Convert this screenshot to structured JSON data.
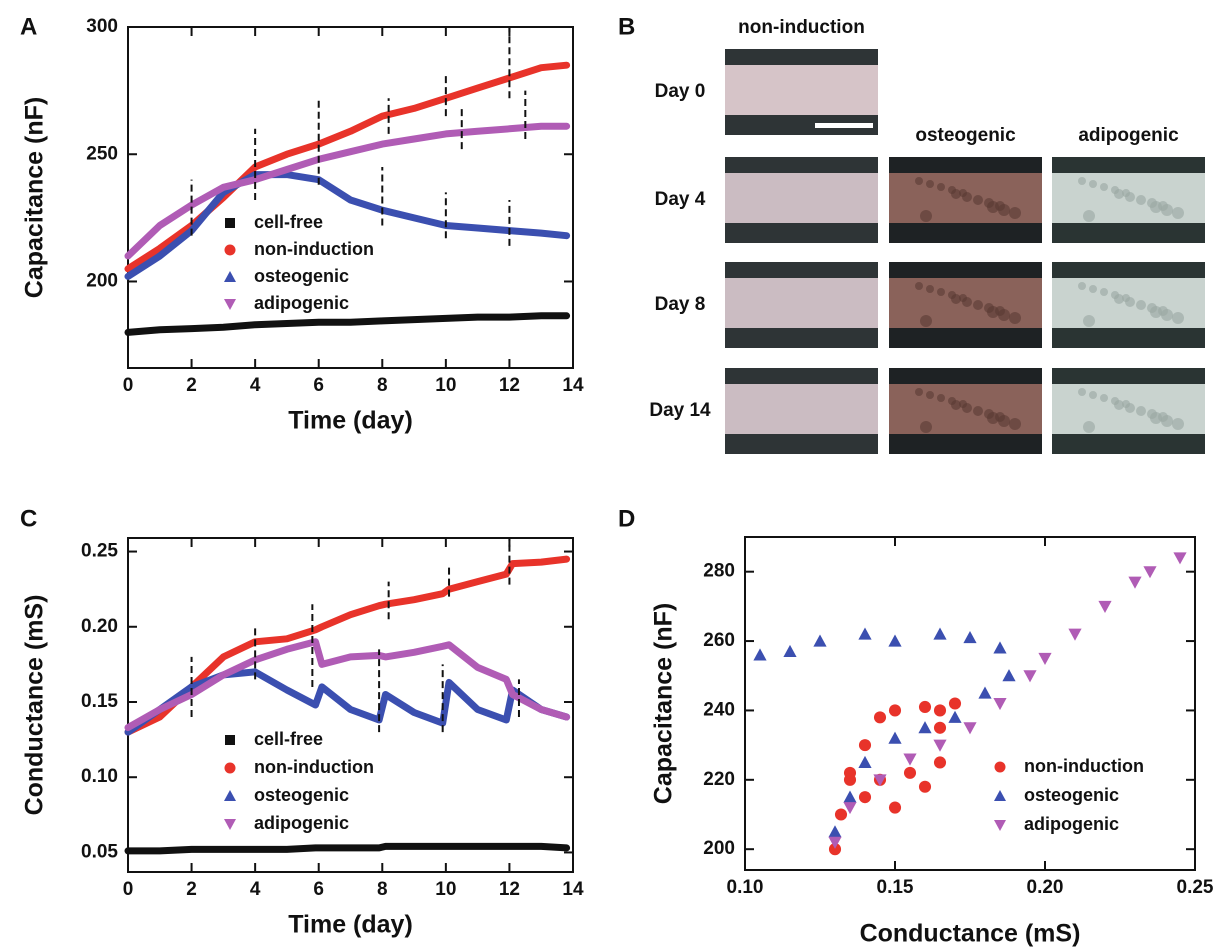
{
  "chart_data": [
    {
      "type": "line",
      "panel": "A",
      "xlabel": "Time (day)",
      "ylabel": "Capacitance (nF)",
      "x": [
        0,
        1,
        2,
        3,
        4,
        5,
        6,
        7,
        8,
        9,
        10,
        11,
        12,
        13,
        13.8
      ],
      "series": [
        {
          "name": "cell-free",
          "color": "#111111",
          "marker": "square",
          "values": [
            180,
            181,
            181.5,
            182,
            183,
            183.5,
            184,
            184,
            184.5,
            185,
            185.5,
            186,
            186,
            186.5,
            186.5
          ]
        },
        {
          "name": "non-induction",
          "color": "#e8332a",
          "marker": "circle",
          "values": [
            205,
            213,
            222,
            233,
            245,
            250,
            254,
            259,
            265,
            268,
            272,
            276,
            280,
            284,
            285
          ]
        },
        {
          "name": "osteogenic",
          "color": "#3b4fb0",
          "marker": "triangle-up",
          "values": [
            202,
            210,
            220,
            235,
            242,
            242,
            240,
            232,
            228,
            225,
            222,
            221,
            220,
            219,
            218
          ]
        },
        {
          "name": "adipogenic",
          "color": "#b05cb5",
          "marker": "triangle-down",
          "values": [
            210,
            222,
            230,
            237,
            240,
            244,
            248,
            251,
            254,
            256,
            258,
            259,
            260,
            261,
            261
          ]
        }
      ],
      "vlines": [
        [
          2,
          218,
          240
        ],
        [
          4,
          232,
          260
        ],
        [
          6,
          238,
          272
        ],
        [
          8,
          222,
          245
        ],
        [
          8.2,
          258,
          272
        ],
        [
          10,
          217,
          235
        ],
        [
          10,
          265,
          282
        ],
        [
          10.5,
          252,
          268
        ],
        [
          12,
          214,
          232
        ],
        [
          12,
          272,
          300
        ],
        [
          12.5,
          256,
          275
        ]
      ],
      "xlim": [
        0,
        14
      ],
      "ylim": [
        166,
        300
      ],
      "xticks": [
        0,
        2,
        4,
        6,
        8,
        10,
        12,
        14
      ],
      "yticks": [
        200,
        250,
        300
      ]
    },
    {
      "type": "line",
      "panel": "C",
      "xlabel": "Time (day)",
      "ylabel": "Conductance (mS)",
      "x": [
        0,
        1,
        2,
        3,
        4,
        5,
        5.9,
        6.1,
        7,
        7.9,
        8.1,
        9,
        9.9,
        10.1,
        11,
        11.9,
        12.1,
        13,
        13.8
      ],
      "series": [
        {
          "name": "cell-free",
          "color": "#111111",
          "marker": "square",
          "values": [
            0.051,
            0.051,
            0.052,
            0.052,
            0.052,
            0.052,
            0.053,
            0.053,
            0.053,
            0.053,
            0.054,
            0.054,
            0.054,
            0.054,
            0.054,
            0.054,
            0.054,
            0.054,
            0.053
          ]
        },
        {
          "name": "non-induction",
          "color": "#e8332a",
          "marker": "circle",
          "values": [
            0.13,
            0.14,
            0.16,
            0.18,
            0.19,
            0.192,
            0.198,
            0.2,
            0.208,
            0.214,
            0.215,
            0.218,
            0.222,
            0.225,
            0.23,
            0.235,
            0.242,
            0.243,
            0.245
          ]
        },
        {
          "name": "osteogenic",
          "color": "#3b4fb0",
          "marker": "triangle-up",
          "values": [
            0.13,
            0.145,
            0.16,
            0.168,
            0.17,
            0.158,
            0.148,
            0.16,
            0.145,
            0.138,
            0.155,
            0.143,
            0.136,
            0.163,
            0.145,
            0.138,
            0.158,
            0.145,
            0.14
          ]
        },
        {
          "name": "adipogenic",
          "color": "#b05cb5",
          "marker": "triangle-down",
          "values": [
            0.133,
            0.145,
            0.155,
            0.168,
            0.178,
            0.185,
            0.19,
            0.175,
            0.18,
            0.181,
            0.18,
            0.183,
            0.187,
            0.188,
            0.173,
            0.165,
            0.155,
            0.145,
            0.14
          ]
        }
      ],
      "vlines": [
        [
          2,
          0.14,
          0.18
        ],
        [
          4,
          0.165,
          0.2
        ],
        [
          5.8,
          0.16,
          0.215
        ],
        [
          7.9,
          0.13,
          0.185
        ],
        [
          8.2,
          0.205,
          0.23
        ],
        [
          9.9,
          0.13,
          0.175
        ],
        [
          10.1,
          0.22,
          0.24
        ],
        [
          12,
          0.228,
          0.258
        ],
        [
          12.3,
          0.14,
          0.165
        ]
      ],
      "xlim": [
        0,
        14
      ],
      "ylim": [
        0.037,
        0.259
      ],
      "xticks": [
        0,
        2,
        4,
        6,
        8,
        10,
        12,
        14
      ],
      "yticks": [
        0.05,
        {
          "value": 0.1,
          "label": "0.10"
        },
        0.15,
        {
          "value": 0.2,
          "label": "0.20"
        },
        0.25
      ]
    },
    {
      "type": "scatter",
      "panel": "D",
      "xlabel": "Conductance (mS)",
      "ylabel": "Capacitance (nF)",
      "series": [
        {
          "name": "non-induction",
          "color": "#e8332a",
          "marker": "circle",
          "x": [
            0.13,
            0.132,
            0.135,
            0.14,
            0.145,
            0.15,
            0.16,
            0.165,
            0.17,
            0.165,
            0.155,
            0.145,
            0.135,
            0.14,
            0.15,
            0.16,
            0.165
          ],
          "values": [
            200,
            210,
            220,
            230,
            238,
            240,
            241,
            240,
            242,
            225,
            222,
            220,
            222,
            215,
            212,
            218,
            235
          ]
        },
        {
          "name": "osteogenic",
          "color": "#3b4fb0",
          "marker": "triangle-up",
          "x": [
            0.105,
            0.115,
            0.125,
            0.14,
            0.15,
            0.165,
            0.175,
            0.185,
            0.188,
            0.18,
            0.17,
            0.16,
            0.15,
            0.14,
            0.135,
            0.13
          ],
          "values": [
            256,
            257,
            260,
            262,
            260,
            262,
            261,
            258,
            250,
            245,
            238,
            235,
            232,
            225,
            215,
            205
          ]
        },
        {
          "name": "adipogenic",
          "color": "#b05cb5",
          "marker": "triangle-down",
          "x": [
            0.13,
            0.135,
            0.145,
            0.155,
            0.165,
            0.175,
            0.185,
            0.195,
            0.2,
            0.21,
            0.22,
            0.23,
            0.235,
            0.245
          ],
          "values": [
            202,
            212,
            220,
            226,
            230,
            235,
            242,
            250,
            255,
            262,
            270,
            277,
            280,
            284
          ]
        }
      ],
      "xlim": [
        0.1,
        0.25
      ],
      "ylim": [
        194,
        290
      ],
      "xticks": [
        {
          "value": 0.1,
          "label": "0.10"
        },
        0.15,
        {
          "value": 0.2,
          "label": "0.20"
        },
        0.25
      ],
      "yticks": [
        200,
        220,
        240,
        260,
        280
      ]
    }
  ],
  "image_panel": {
    "panel": "B",
    "columns": [
      "non-induction",
      "osteogenic",
      "adipogenic"
    ],
    "rows": [
      "Day 0",
      "Day 4",
      "Day 8",
      "Day 14"
    ]
  }
}
